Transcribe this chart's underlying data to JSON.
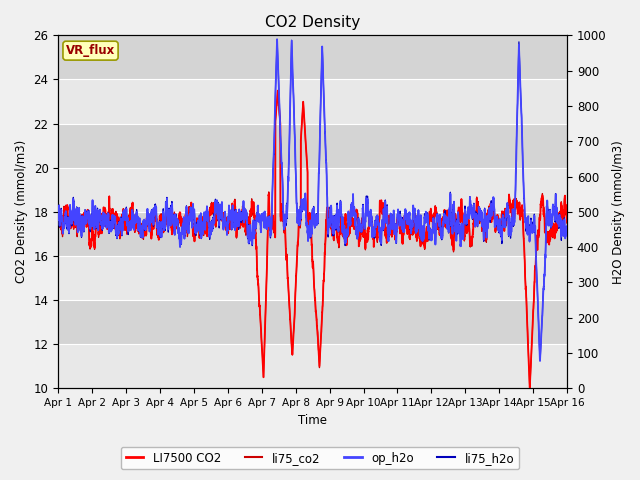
{
  "title": "CO2 Density",
  "xlabel": "Time",
  "ylabel_left": "CO2 Density (mmol/m3)",
  "ylabel_right": "H2O Density (mmol/m3)",
  "ylim_left": [
    10,
    26
  ],
  "ylim_right": [
    0,
    1000
  ],
  "yticks_left": [
    10,
    12,
    14,
    16,
    18,
    20,
    22,
    24,
    26
  ],
  "yticks_right": [
    0,
    100,
    200,
    300,
    400,
    500,
    600,
    700,
    800,
    900,
    1000
  ],
  "xtick_labels": [
    "Apr 1",
    "Apr 2",
    "Apr 3",
    "Apr 4",
    "Apr 5",
    "Apr 6",
    "Apr 7",
    "Apr 8",
    "Apr 9",
    "Apr 10",
    "Apr 11",
    "Apr 12",
    "Apr 13",
    "Apr 14",
    "Apr 15",
    "Apr 16"
  ],
  "legend_entries": [
    "LI7500 CO2",
    "li75_co2",
    "op_h2o",
    "li75_h2o"
  ],
  "vr_flux_label": "VR_flux",
  "fig_facecolor": "#f0f0f0",
  "band_colors": [
    "#e8e8e8",
    "#d4d4d4"
  ],
  "line_colors": {
    "LI7500_CO2": "#ff0000",
    "li75_co2": "#cc0000",
    "op_h2o": "#4444ff",
    "li75_h2o": "#0000bb"
  },
  "n_days": 15,
  "points_per_day": 288,
  "seed": 17
}
